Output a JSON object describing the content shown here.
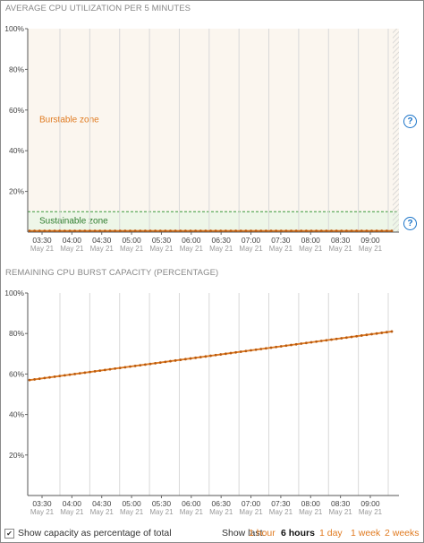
{
  "chart_data": [
    {
      "type": "line",
      "title": "AVERAGE CPU UTILIZATION PER 5 MINUTES",
      "yticks": [
        "20%",
        "40%",
        "60%",
        "80%",
        "100%"
      ],
      "ylim": [
        0,
        100
      ],
      "x": [
        "03:30",
        "04:00",
        "04:30",
        "05:00",
        "05:30",
        "06:00",
        "06:30",
        "07:00",
        "07:30",
        "08:00",
        "08:30",
        "09:00"
      ],
      "x_sub": "May 21",
      "series": [
        {
          "start": 0.6,
          "end": 0.6,
          "color": "#e07b21"
        }
      ],
      "zones": {
        "burstable_label": "Burstable zone",
        "sustainable_label": "Sustainable zone",
        "baseline": 10,
        "burstable_color": "#fbf6ef",
        "sustainable_color": "#eef6e8"
      },
      "grid": true
    },
    {
      "type": "line",
      "title": "REMAINING CPU BURST CAPACITY (PERCENTAGE)",
      "yticks": [
        "20%",
        "40%",
        "60%",
        "80%",
        "100%"
      ],
      "ylim": [
        0,
        100
      ],
      "x": [
        "03:30",
        "04:00",
        "04:30",
        "05:00",
        "05:30",
        "06:00",
        "06:30",
        "07:00",
        "07:30",
        "08:00",
        "08:30",
        "09:00"
      ],
      "x_sub": "May 21",
      "series": [
        {
          "start": 57,
          "end": 81,
          "color": "#e07b21"
        }
      ],
      "grid": true
    }
  ],
  "footer": {
    "checkbox_label": "Show capacity as percentage of total",
    "checkbox_mark": "✔",
    "show_last_label": "Show last:",
    "ranges": [
      "1 hour",
      "6 hours",
      "1 day",
      "1 week",
      "2 weeks"
    ],
    "active_range": "6 hours"
  },
  "help_glyph": "?"
}
